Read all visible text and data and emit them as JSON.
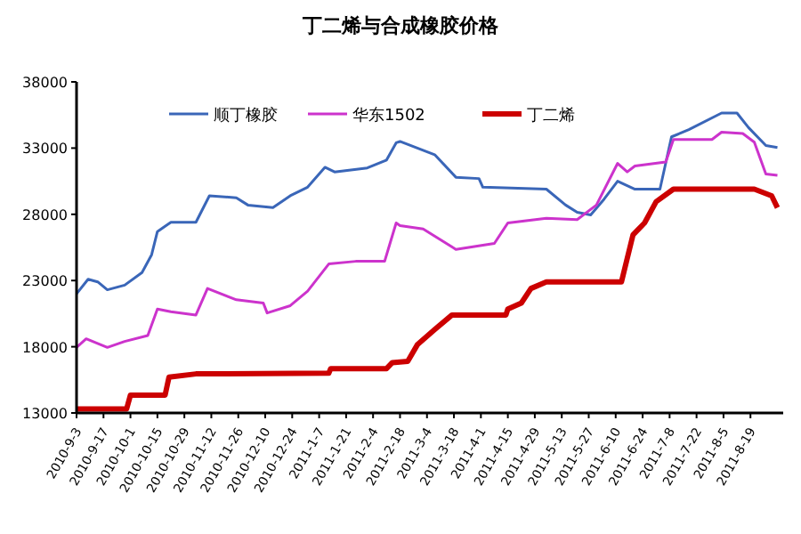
{
  "chart_data": {
    "type": "line",
    "title": "丁二烯与合成橡胶价格",
    "legend": "top",
    "grid": false,
    "marker": "none",
    "line_style": "solid",
    "xlim": [
      "2010-09-03",
      "2011-09-05"
    ],
    "ylim": [
      13000,
      38000
    ],
    "yticks": [
      13000,
      18000,
      23000,
      28000,
      33000,
      38000
    ],
    "xticks": [
      {
        "value": "2010-09-03",
        "label": "2010-9-3"
      },
      {
        "value": "2010-09-17",
        "label": "2010-9-17"
      },
      {
        "value": "2010-10-01",
        "label": "2010-10-1"
      },
      {
        "value": "2010-10-15",
        "label": "2010-10-15"
      },
      {
        "value": "2010-10-29",
        "label": "2010-10-29"
      },
      {
        "value": "2010-11-12",
        "label": "2010-11-12"
      },
      {
        "value": "2010-11-26",
        "label": "2010-11-26"
      },
      {
        "value": "2010-12-10",
        "label": "2010-12-10"
      },
      {
        "value": "2010-12-24",
        "label": "2010-12-24"
      },
      {
        "value": "2011-01-07",
        "label": "2011-1-7"
      },
      {
        "value": "2011-01-21",
        "label": "2011-1-21"
      },
      {
        "value": "2011-02-04",
        "label": "2011-2-4"
      },
      {
        "value": "2011-02-18",
        "label": "2011-2-18"
      },
      {
        "value": "2011-03-04",
        "label": "2011-3-4"
      },
      {
        "value": "2011-03-18",
        "label": "2011-3-18"
      },
      {
        "value": "2011-04-01",
        "label": "2011-4-1"
      },
      {
        "value": "2011-04-15",
        "label": "2011-4-15"
      },
      {
        "value": "2011-04-29",
        "label": "2011-4-29"
      },
      {
        "value": "2011-05-13",
        "label": "2011-5-13"
      },
      {
        "value": "2011-05-27",
        "label": "2011-5-27"
      },
      {
        "value": "2011-06-10",
        "label": "2011-6-10"
      },
      {
        "value": "2011-06-24",
        "label": "2011-6-24"
      },
      {
        "value": "2011-07-08",
        "label": "2011-7-8"
      },
      {
        "value": "2011-07-22",
        "label": "2011-7-22"
      },
      {
        "value": "2011-08-05",
        "label": "2011-8-5"
      },
      {
        "value": "2011-08-19",
        "label": "2011-8-19"
      }
    ],
    "series": [
      {
        "name": "顺丁橡胶",
        "color": "#3a66b8",
        "x": [
          "2010-09-03",
          "2010-09-09",
          "2010-09-14",
          "2010-09-19",
          "2010-09-28",
          "2010-10-07",
          "2010-10-12",
          "2010-10-15",
          "2010-10-22",
          "2010-11-04",
          "2010-11-11",
          "2010-11-25",
          "2010-12-01",
          "2010-12-14",
          "2010-12-23",
          "2011-01-01",
          "2011-01-10",
          "2011-01-15",
          "2011-02-01",
          "2011-02-11",
          "2011-02-16",
          "2011-02-18",
          "2011-03-08",
          "2011-03-19",
          "2011-03-31",
          "2011-04-02",
          "2011-05-05",
          "2011-05-15",
          "2011-05-21",
          "2011-05-28",
          "2011-06-04",
          "2011-06-11",
          "2011-06-20",
          "2011-07-03",
          "2011-07-09",
          "2011-07-18",
          "2011-08-04",
          "2011-08-12",
          "2011-08-18",
          "2011-08-27",
          "2011-09-02"
        ],
        "values": [
          22000,
          23100,
          22900,
          22300,
          22650,
          23600,
          24950,
          26700,
          27400,
          27400,
          29400,
          29250,
          28700,
          28500,
          29400,
          30050,
          31550,
          31200,
          31500,
          32100,
          33400,
          33500,
          32500,
          30800,
          30700,
          30050,
          29900,
          28700,
          28150,
          27950,
          29150,
          30500,
          29900,
          29900,
          33850,
          34400,
          35650,
          35650,
          34550,
          33200,
          33050
        ]
      },
      {
        "name": "华东1502",
        "color": "#cc33cc",
        "x": [
          "2010-09-03",
          "2010-09-08",
          "2010-09-19",
          "2010-09-28",
          "2010-10-10",
          "2010-10-15",
          "2010-10-22",
          "2010-11-04",
          "2010-11-10",
          "2010-11-25",
          "2010-12-09",
          "2010-12-11",
          "2010-12-23",
          "2011-01-01",
          "2011-01-12",
          "2011-01-26",
          "2011-02-10",
          "2011-02-13",
          "2011-02-16",
          "2011-02-18",
          "2011-03-02",
          "2011-03-19",
          "2011-04-08",
          "2011-04-15",
          "2011-05-05",
          "2011-05-21",
          "2011-05-31",
          "2011-06-11",
          "2011-06-16",
          "2011-06-20",
          "2011-07-06",
          "2011-07-10",
          "2011-07-30",
          "2011-08-04",
          "2011-08-15",
          "2011-08-21",
          "2011-08-27",
          "2011-09-02"
        ],
        "values": [
          17950,
          18600,
          17950,
          18400,
          18850,
          20850,
          20650,
          20400,
          22400,
          21550,
          21300,
          20550,
          21100,
          22200,
          24250,
          24450,
          24450,
          25900,
          27350,
          27150,
          26900,
          25350,
          25800,
          27350,
          27700,
          27600,
          28700,
          31850,
          31200,
          31650,
          31950,
          33650,
          33650,
          34200,
          34100,
          33450,
          31050,
          30950
        ]
      },
      {
        "name": "丁二烯",
        "color": "#cc0000",
        "x": [
          "2010-09-03",
          "2010-09-29",
          "2010-10-01",
          "2010-10-19",
          "2010-10-21",
          "2010-11-04",
          "2011-01-12",
          "2011-01-13",
          "2011-02-11",
          "2011-02-14",
          "2011-02-22",
          "2011-02-27",
          "2011-03-08",
          "2011-03-17",
          "2011-04-14",
          "2011-04-15",
          "2011-04-22",
          "2011-04-27",
          "2011-05-05",
          "2011-06-13",
          "2011-06-19",
          "2011-06-25",
          "2011-07-01",
          "2011-07-10",
          "2011-08-21",
          "2011-08-30",
          "2011-09-02"
        ],
        "values": [
          13300,
          13300,
          14350,
          14350,
          15700,
          15950,
          16000,
          16350,
          16350,
          16800,
          16900,
          18150,
          19300,
          20400,
          20400,
          20850,
          21300,
          22400,
          22900,
          22900,
          26450,
          27350,
          28950,
          29900,
          29900,
          29400,
          28500
        ]
      }
    ]
  }
}
